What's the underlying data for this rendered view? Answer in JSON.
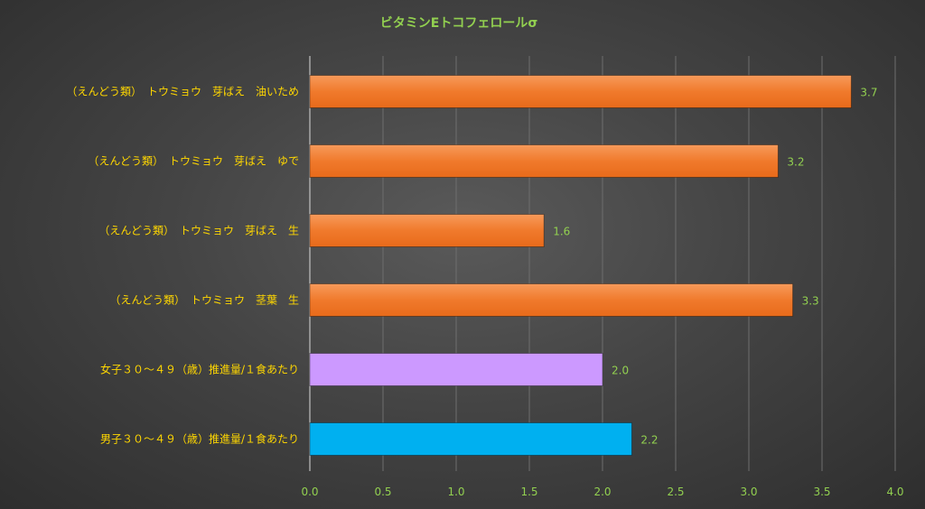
{
  "chart_data": {
    "type": "bar",
    "orientation": "horizontal",
    "title": "ビタミンEトコフェロールσ",
    "categories": [
      "（えんどう類）　トウミョウ　芽ばえ　油いため",
      "（えんどう類）　トウミョウ　芽ばえ　ゆで",
      "（えんどう類）　トウミョウ　芽ばえ　生",
      "（えんどう類）　トウミョウ　茎葉　生",
      "女子３０～４９（歳）推進量/１食あたり",
      "男子３０～４９（歳）推進量/１食あたり"
    ],
    "values": [
      3.7,
      3.2,
      1.6,
      3.3,
      2.0,
      2.2
    ],
    "value_labels": [
      "3.7",
      "3.2",
      "1.6",
      "3.3",
      "2.0",
      "2.2"
    ],
    "bar_colors": [
      "#f07a2c",
      "#f07a2c",
      "#f07a2c",
      "#f07a2c",
      "#cc99ff",
      "#00b0f0"
    ],
    "xlim": [
      0,
      4
    ],
    "xticks": [
      "0.0",
      "0.5",
      "1.0",
      "1.5",
      "2.0",
      "2.5",
      "3.0",
      "3.5",
      "4.0"
    ],
    "grid": true,
    "colors": {
      "title": "#92d050",
      "category_label": "#ffd700",
      "value_label": "#92d050",
      "tick_label": "#92d050",
      "gridline": "#6e6e6e",
      "axis": "#d9d9d9"
    }
  }
}
